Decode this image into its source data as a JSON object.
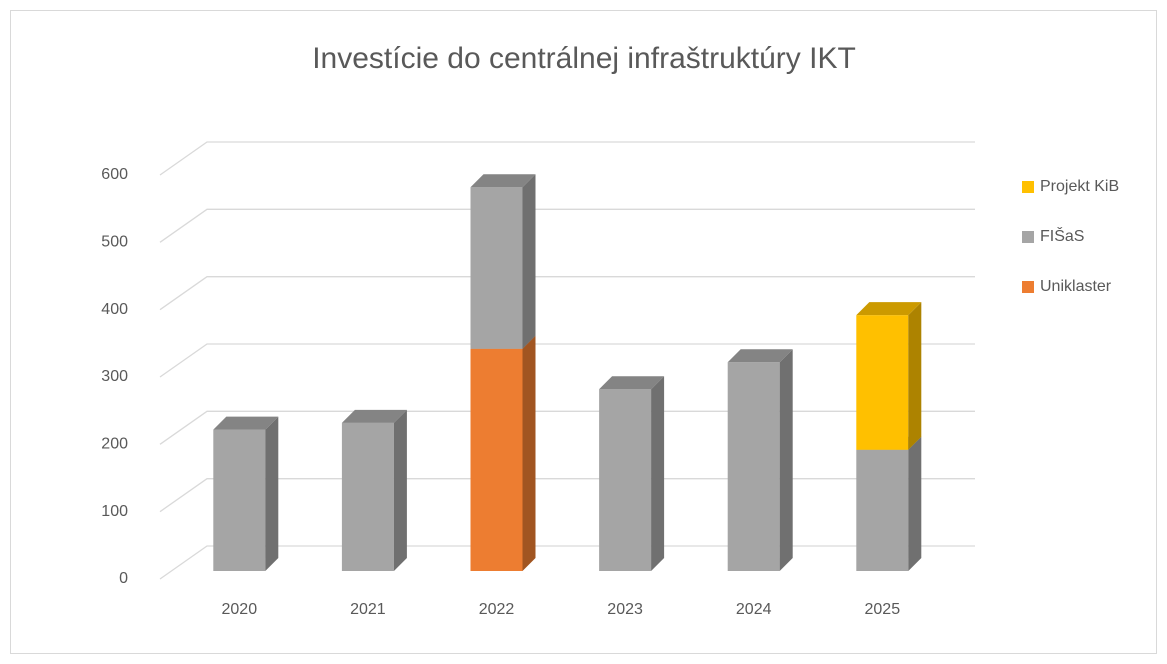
{
  "chart_data": {
    "type": "bar3d_stacked",
    "title": "Investície do centrálnej infraštruktúry IKT",
    "categories": [
      "2020",
      "2021",
      "2022",
      "2023",
      "2024",
      "2025"
    ],
    "series": [
      {
        "name": "Uniklaster",
        "color": "#ed7d31",
        "values": [
          null,
          null,
          330,
          null,
          null,
          null
        ]
      },
      {
        "name": "FIŠaS",
        "color": "#a5a5a5",
        "values": [
          210,
          220,
          240,
          270,
          310,
          180
        ]
      },
      {
        "name": "Projekt KiB",
        "color": "#ffc000",
        "values": [
          null,
          null,
          null,
          null,
          null,
          200
        ]
      }
    ],
    "ylim": [
      0,
      600
    ],
    "yticks": [
      0,
      100,
      200,
      300,
      400,
      500,
      600
    ],
    "grid": true,
    "legend": "right"
  }
}
